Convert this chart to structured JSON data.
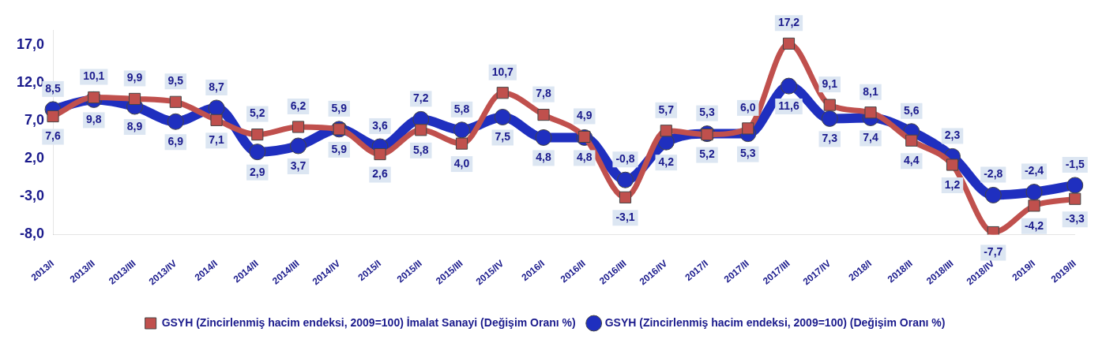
{
  "chart_data": {
    "type": "line",
    "categories": [
      "2013/I",
      "2013/II",
      "2013/III",
      "2013/IV",
      "2014/I",
      "2014/II",
      "2014/III",
      "2014/IV",
      "2015/I",
      "2015/II",
      "2015/III",
      "2015/IV",
      "2016/I",
      "2016/II",
      "2016/III",
      "2016/IV",
      "2017/I",
      "2017/II",
      "2017/III",
      "2017/IV",
      "2018/I",
      "2018/II",
      "2018/III",
      "2018/IV",
      "2019/I",
      "2019/II"
    ],
    "series": [
      {
        "name": "GSYH (Zincirlenmiş hacim endeksi, 2009=100) (Değişim Oranı %)",
        "color": "#1f2fbf",
        "marker": "circle",
        "values": [
          8.5,
          9.8,
          8.9,
          6.9,
          8.7,
          2.9,
          3.7,
          5.9,
          3.6,
          7.2,
          5.8,
          7.5,
          4.8,
          4.8,
          -0.8,
          4.2,
          5.3,
          5.3,
          11.6,
          7.3,
          7.4,
          5.6,
          2.3,
          -2.8,
          -2.4,
          -1.5
        ],
        "value_labels": [
          "8,5",
          "9,8",
          "8,9",
          "6,9",
          "8,7",
          "2,9",
          "3,7",
          "5,9",
          "3,6",
          "7,2",
          "5,8",
          "7,5",
          "4,8",
          "4,8",
          "-0,8",
          "4,2",
          "5,3",
          "5,3",
          "11,6",
          "7,3",
          "7,4",
          "5,6",
          "2,3",
          "-2,8",
          "-2,4",
          "-1,5"
        ]
      },
      {
        "name": "GSYH (Zincirlenmiş hacim endeksi, 2009=100) İmalat Sanayi (Değişim Oranı %)",
        "color": "#c0504d",
        "marker": "square",
        "values": [
          7.6,
          10.1,
          9.9,
          9.5,
          7.1,
          5.2,
          6.2,
          5.9,
          2.6,
          5.8,
          4.0,
          10.7,
          7.8,
          4.9,
          -3.1,
          5.7,
          5.2,
          6.0,
          17.2,
          9.1,
          8.1,
          4.4,
          1.2,
          -7.7,
          -4.2,
          -3.3
        ],
        "value_labels": [
          "7,6",
          "10,1",
          "9,9",
          "9,5",
          "7,1",
          "5,2",
          "6,2",
          "5,9",
          "2,6",
          "5,8",
          "4,0",
          "10,7",
          "7,8",
          "4,9",
          "-3,1",
          "5,7",
          "5,2",
          "6,0",
          "17,2",
          "9,1",
          "8,1",
          "4,4",
          "1,2",
          "-7,7",
          "-4,2",
          "-3,3"
        ]
      }
    ],
    "ylim": [
      -8,
      19
    ],
    "yticks": [
      {
        "value": -8,
        "label": "-8,0"
      },
      {
        "value": -3,
        "label": "-3,0"
      },
      {
        "value": 2,
        "label": "2,0"
      },
      {
        "value": 7,
        "label": "7,0"
      },
      {
        "value": 12,
        "label": "12,0"
      },
      {
        "value": 17,
        "label": "17,0"
      }
    ],
    "grid": false,
    "legend": "bottom"
  }
}
